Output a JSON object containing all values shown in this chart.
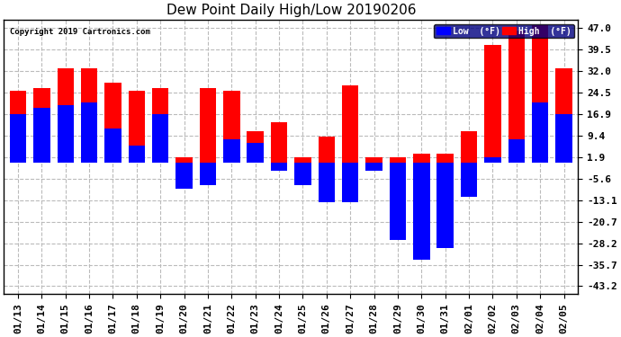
{
  "title": "Dew Point Daily High/Low 20190206",
  "copyright": "Copyright 2019 Cartronics.com",
  "dates": [
    "01/13",
    "01/14",
    "01/15",
    "01/16",
    "01/17",
    "01/18",
    "01/19",
    "01/20",
    "01/21",
    "01/22",
    "01/23",
    "01/24",
    "01/25",
    "01/26",
    "01/27",
    "01/28",
    "01/29",
    "01/30",
    "01/31",
    "02/01",
    "02/02",
    "02/03",
    "02/04",
    "02/05"
  ],
  "highs": [
    25,
    26,
    33,
    33,
    28,
    25,
    26,
    2,
    26,
    25,
    11,
    14,
    2,
    9,
    27,
    2,
    2,
    3,
    3,
    11,
    41,
    46,
    48,
    33
  ],
  "lows": [
    17,
    19,
    20,
    21,
    12,
    6,
    17,
    -9,
    -8,
    8,
    7,
    -3,
    -8,
    -14,
    -14,
    -3,
    -27,
    -34,
    -30,
    -12,
    2,
    8,
    21,
    17
  ],
  "high_color": "#FF0000",
  "low_color": "#0000FF",
  "background_color": "#FFFFFF",
  "grid_color": "#BBBBBB",
  "yticks": [
    47.0,
    39.5,
    32.0,
    24.5,
    16.9,
    9.4,
    1.9,
    -5.6,
    -13.1,
    -20.7,
    -28.2,
    -35.7,
    -43.2
  ],
  "ylim": [
    -46,
    50
  ],
  "bar_width": 0.7,
  "title_fontsize": 11,
  "tick_fontsize": 8,
  "legend_labels": [
    "Low  (°F)",
    "High  (°F)"
  ]
}
